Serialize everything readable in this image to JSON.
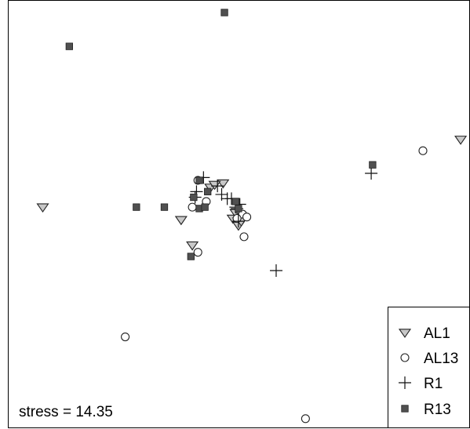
{
  "chart_data": {
    "type": "scatter",
    "title": "",
    "xlabel": "",
    "ylabel": "",
    "grid": false,
    "axes_shown": false,
    "xlim": [
      -1.6,
      1.6
    ],
    "ylim": [
      -1.46,
      1.46
    ],
    "legend_position": "bottom-right",
    "annotation": "stress = 14.35",
    "series": [
      {
        "name": "AL1",
        "marker": "triangle-down",
        "color": "#c8c8c8",
        "points": [
          [
            -1.44,
            0.08
          ],
          [
            1.55,
            0.56
          ],
          [
            -0.24,
            0.22
          ],
          [
            -0.15,
            0.25
          ],
          [
            -0.21,
            0.24
          ],
          [
            -0.06,
            0.04
          ],
          [
            -0.08,
            0.0
          ],
          [
            -0.04,
            -0.02
          ],
          [
            -0.04,
            -0.05
          ],
          [
            -0.45,
            -0.01
          ],
          [
            -0.37,
            -0.19
          ],
          [
            -0.02,
            -0.02
          ]
        ]
      },
      {
        "name": "AL13",
        "marker": "circle",
        "color": "#ffffff",
        "points": [
          [
            1.28,
            0.48
          ],
          [
            -0.33,
            0.27
          ],
          [
            -0.27,
            0.12
          ],
          [
            -0.37,
            0.08
          ],
          [
            -0.01,
            0.03
          ],
          [
            -0.05,
            0.0
          ],
          [
            0.02,
            0.01
          ],
          [
            0.0,
            -0.13
          ],
          [
            -0.33,
            -0.24
          ],
          [
            -0.85,
            -0.84
          ],
          [
            0.44,
            -1.42
          ]
        ]
      },
      {
        "name": "R1",
        "marker": "plus",
        "color": "#111111",
        "points": [
          [
            0.91,
            0.32
          ],
          [
            -0.29,
            0.29
          ],
          [
            -0.19,
            0.23
          ],
          [
            -0.34,
            0.19
          ],
          [
            -0.35,
            0.15
          ],
          [
            -0.16,
            0.17
          ],
          [
            -0.09,
            0.14
          ],
          [
            -0.12,
            0.14
          ],
          [
            -0.06,
            0.08
          ],
          [
            -0.03,
            0.1
          ],
          [
            -0.05,
            0.07
          ],
          [
            -0.04,
            -0.02
          ],
          [
            0.23,
            -0.37
          ]
        ]
      },
      {
        "name": "R13",
        "marker": "square",
        "color": "#505050",
        "points": [
          [
            -0.14,
            1.46
          ],
          [
            -1.25,
            1.22
          ],
          [
            0.92,
            0.38
          ],
          [
            -0.32,
            0.27
          ],
          [
            -0.26,
            0.19
          ],
          [
            -0.36,
            0.15
          ],
          [
            -0.04,
            0.07
          ],
          [
            -0.06,
            0.12
          ],
          [
            -0.32,
            0.07
          ],
          [
            -0.57,
            0.08
          ],
          [
            -0.77,
            0.08
          ],
          [
            -0.28,
            0.08
          ],
          [
            -0.38,
            -0.27
          ]
        ]
      }
    ]
  },
  "legend": {
    "items": [
      {
        "label": "AL1",
        "marker": "triangle-down"
      },
      {
        "label": "AL13",
        "marker": "circle"
      },
      {
        "label": "R1",
        "marker": "plus"
      },
      {
        "label": "R13",
        "marker": "square"
      }
    ]
  },
  "stress_text": "stress = 14.35"
}
